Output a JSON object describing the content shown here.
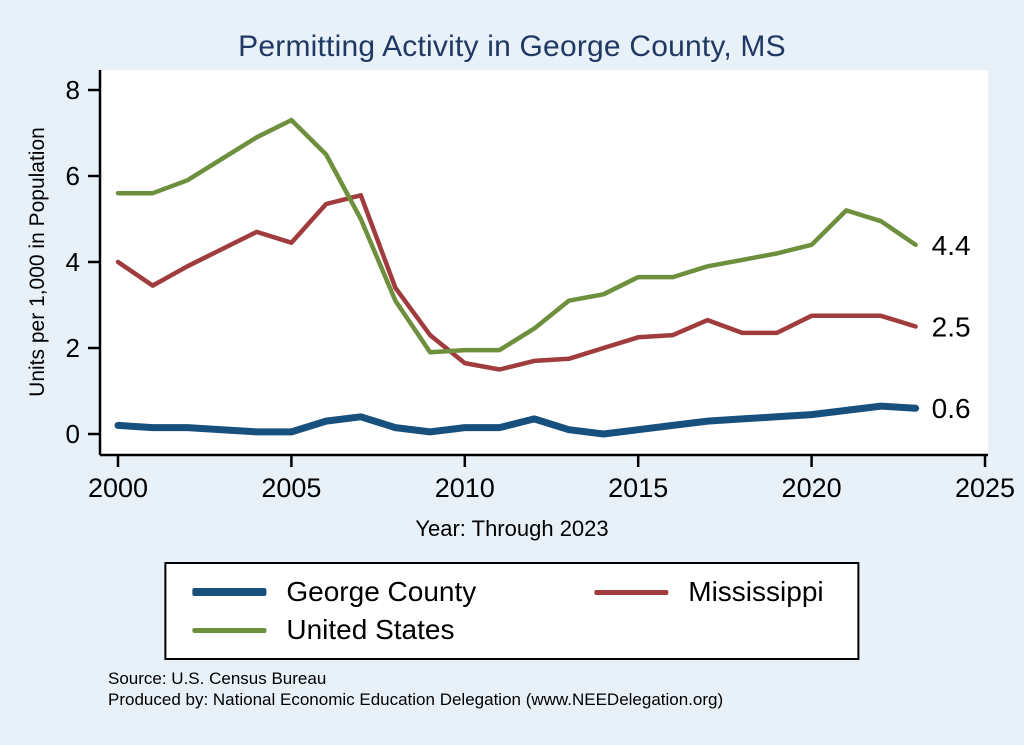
{
  "title": "Permitting Activity in George County, MS",
  "chart_data": {
    "type": "line",
    "title": "Permitting Activity in George County, MS",
    "xlabel": "Year: Through 2023",
    "ylabel": "Units per 1,000 in Population",
    "xlim": [
      2000,
      2025
    ],
    "ylim": [
      0,
      8
    ],
    "x_ticks": [
      2000,
      2005,
      2010,
      2015,
      2020,
      2025
    ],
    "y_ticks": [
      0,
      2,
      4,
      6,
      8
    ],
    "grid": false,
    "legend_position": "bottom",
    "x": [
      2000,
      2001,
      2002,
      2003,
      2004,
      2005,
      2006,
      2007,
      2008,
      2009,
      2010,
      2011,
      2012,
      2013,
      2014,
      2015,
      2016,
      2017,
      2018,
      2019,
      2020,
      2021,
      2022,
      2023
    ],
    "series": [
      {
        "name": "George County",
        "color": "#17507c",
        "width": 7,
        "end_label": "0.6",
        "values": [
          0.2,
          0.15,
          0.15,
          0.1,
          0.05,
          0.05,
          0.3,
          0.4,
          0.15,
          0.05,
          0.15,
          0.15,
          0.35,
          0.1,
          0.0,
          0.1,
          0.2,
          0.3,
          0.35,
          0.4,
          0.45,
          0.55,
          0.65,
          0.6
        ]
      },
      {
        "name": "Mississippi",
        "color": "#a03c3e",
        "width": 4.5,
        "end_label": "2.5",
        "values": [
          4.0,
          3.45,
          3.9,
          4.3,
          4.7,
          4.45,
          5.35,
          5.55,
          3.4,
          2.3,
          1.65,
          1.5,
          1.7,
          1.75,
          2.0,
          2.25,
          2.3,
          2.65,
          2.35,
          2.35,
          2.75,
          2.75,
          2.75,
          2.5
        ]
      },
      {
        "name": "United States",
        "color": "#6e8f3c",
        "width": 4.5,
        "end_label": "4.4",
        "values": [
          5.6,
          5.6,
          5.9,
          6.4,
          6.9,
          7.3,
          6.5,
          5.0,
          3.1,
          1.9,
          1.95,
          1.95,
          2.45,
          3.1,
          3.25,
          3.65,
          3.65,
          3.9,
          4.05,
          4.2,
          4.4,
          5.2,
          4.95,
          4.4
        ]
      }
    ]
  },
  "notes": {
    "source": "Source: U.S. Census Bureau",
    "produced_by": "Produced by: National Economic Education Delegation (www.NEEDelegation.org)"
  },
  "colors": {
    "background": "#e9f1f8",
    "plot_background": "#ffffff",
    "title": "#1f3864",
    "axis": "#000000"
  }
}
